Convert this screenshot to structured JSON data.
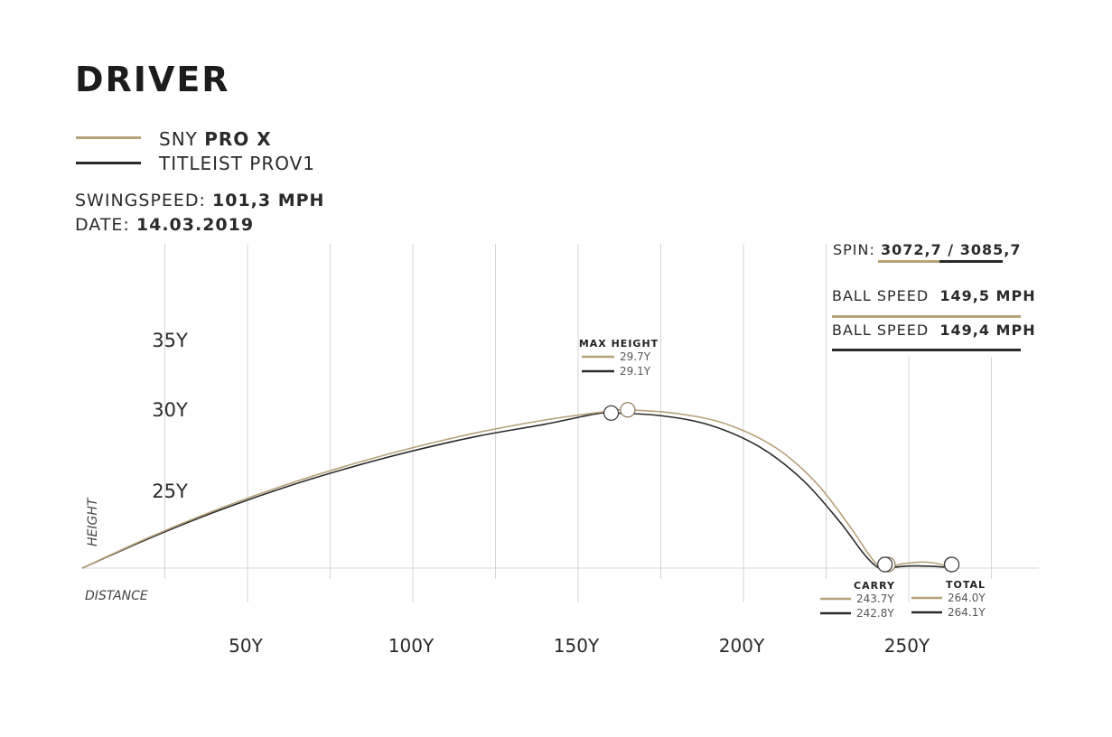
{
  "colors": {
    "sny": "#b5a278",
    "titleist": "#2b2b2b",
    "grid": "#d6d6d6"
  },
  "header": {
    "title": "DRIVER",
    "legend": [
      {
        "prefix": "SNY",
        "bold": "PRO X",
        "color": "#b5a278"
      },
      {
        "prefix": "TITLEIST PROV1",
        "bold": "",
        "color": "#2b2b2b"
      }
    ],
    "swingspeed_label": "SWINGSPEED:",
    "swingspeed_value": "101,3 MPH",
    "date_label": "DATE:",
    "date_value": "14.03.2019"
  },
  "stats": {
    "spin_label": "SPIN:",
    "spin_value": "3072,7 / 3085,7",
    "ball_speed_1_label": "BALL SPEED",
    "ball_speed_1_value": "149,5 MPH",
    "ball_speed_2_label": "BALL SPEED",
    "ball_speed_2_value": "149,4 MPH"
  },
  "chart_data": {
    "type": "line",
    "title": "DRIVER",
    "xlabel": "DISTANCE",
    "ylabel": "HEIGHT",
    "x_ticks": [
      {
        "value": 50,
        "label": "50Y"
      },
      {
        "value": 100,
        "label": "100Y"
      },
      {
        "value": 150,
        "label": "150Y"
      },
      {
        "value": 200,
        "label": "200Y"
      },
      {
        "value": 250,
        "label": "250Y"
      }
    ],
    "y_ticks": [
      {
        "value": 25,
        "label": "25Y"
      },
      {
        "value": 30,
        "label": "30Y"
      },
      {
        "value": 35,
        "label": "35Y"
      }
    ],
    "series": [
      {
        "name": "SNY PRO X",
        "color": "#b5a278",
        "points": [
          [
            0,
            0
          ],
          [
            20,
            5.7
          ],
          [
            40,
            10.8
          ],
          [
            60,
            15.3
          ],
          [
            80,
            19.2
          ],
          [
            100,
            22.6
          ],
          [
            120,
            25.5
          ],
          [
            140,
            27.8
          ],
          [
            160,
            29.5
          ],
          [
            165,
            29.7
          ],
          [
            180,
            29.0
          ],
          [
            195,
            27.0
          ],
          [
            210,
            22.5
          ],
          [
            222,
            16.0
          ],
          [
            232,
            8.0
          ],
          [
            238,
            2.5
          ],
          [
            241,
            0.4
          ],
          [
            243.7,
            0
          ],
          [
            248,
            0.8
          ],
          [
            256,
            1.1
          ],
          [
            264,
            0
          ]
        ],
        "max_height": 29.7,
        "carry": 243.7,
        "total": 264.0
      },
      {
        "name": "TITLEIST PROV1",
        "color": "#2b2b2b",
        "points": [
          [
            0,
            0
          ],
          [
            20,
            5.5
          ],
          [
            40,
            10.5
          ],
          [
            60,
            14.9
          ],
          [
            80,
            18.7
          ],
          [
            100,
            22.0
          ],
          [
            120,
            24.8
          ],
          [
            140,
            27.0
          ],
          [
            155,
            28.9
          ],
          [
            160,
            29.1
          ],
          [
            175,
            28.6
          ],
          [
            190,
            26.8
          ],
          [
            205,
            22.7
          ],
          [
            218,
            16.5
          ],
          [
            229,
            8.8
          ],
          [
            236,
            3.0
          ],
          [
            240,
            0.4
          ],
          [
            242.8,
            0
          ],
          [
            250,
            0.4
          ],
          [
            258,
            0.3
          ],
          [
            264.1,
            0
          ]
        ],
        "max_height": 29.1,
        "carry": 242.8,
        "total": 264.1
      }
    ],
    "annotations": {
      "max_height": {
        "label": "MAX HEIGHT",
        "values": [
          "29.7Y",
          "29.1Y"
        ]
      },
      "carry": {
        "label": "CARRY",
        "values": [
          "243.7Y",
          "242.8Y"
        ]
      },
      "total": {
        "label": "TOTAL",
        "values": [
          "264.0Y",
          "264.1Y"
        ]
      }
    },
    "grid": true
  }
}
